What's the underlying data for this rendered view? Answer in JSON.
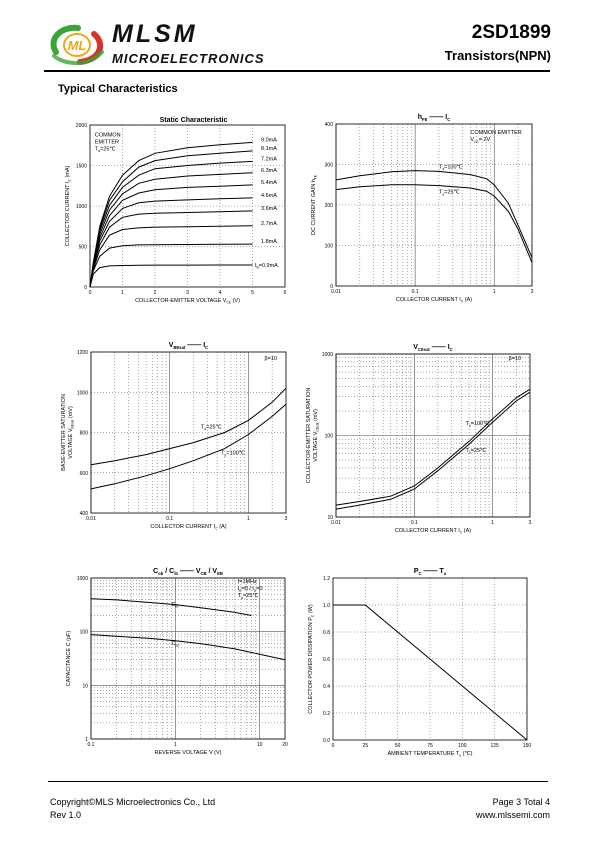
{
  "header": {
    "brand_name": "MLSM",
    "brand_sub": "MICROELECTRONICS",
    "logo_text": "ML",
    "part_number": "2SD1899",
    "part_type": "Transistors(NPN)"
  },
  "section_title": "Typical Characteristics",
  "footer": {
    "copyright": "Copyright©MLS Microelectronics Co., Ltd",
    "revision": "Rev 1.0",
    "page": "Page 3 Total 4",
    "url": "www.mlssemi.com"
  },
  "colors": {
    "ink": "#000000",
    "grid": "#555555",
    "logo_green": "#3aa535",
    "logo_red": "#d8312c",
    "logo_orange": "#f2a51a"
  },
  "chart_data": [
    {
      "id": "static",
      "type": "line",
      "title": "Static Characteristic",
      "xlabel": "COLLECTOR-EMITTER VOLTAGE",
      "xsym": "V",
      "xsub": "CE",
      "xunit": "(V)",
      "ylabel": "COLLECTOR CURRENT",
      "ysym": "I",
      "ysub": "C",
      "yunit": "(mA)",
      "xscale": "linear",
      "yscale": "linear",
      "xlim": [
        0,
        6
      ],
      "ylim": [
        0,
        2000
      ],
      "xticks": [
        0,
        1,
        2,
        3,
        4,
        5,
        6
      ],
      "xtick_labels": [
        "0",
        "1",
        "2",
        "3",
        "4",
        "5",
        "6"
      ],
      "yticks": [
        0,
        500,
        1000,
        1500,
        2000
      ],
      "ytick_labels": [
        "0",
        "500",
        "1000",
        "1500",
        "2000"
      ],
      "annotations": [
        {
          "lines": [
            {
              "text": "COMMON"
            },
            {
              "text": "EMITTER"
            },
            {
              "text": "T",
              "sub": "a",
              "after": "=25℃"
            }
          ],
          "x": 0.15,
          "y": 1860
        }
      ],
      "series": [
        {
          "name": "9.0mA",
          "x": [
            0,
            0.1,
            0.3,
            0.6,
            1,
            1.5,
            2,
            3,
            4,
            5
          ],
          "y": [
            0,
            300,
            750,
            1120,
            1380,
            1560,
            1650,
            1720,
            1755,
            1785
          ]
        },
        {
          "name": "8.1mA",
          "x": [
            0,
            0.1,
            0.3,
            0.6,
            1,
            1.5,
            2,
            3,
            4,
            5
          ],
          "y": [
            0,
            290,
            720,
            1070,
            1300,
            1480,
            1560,
            1620,
            1650,
            1680
          ]
        },
        {
          "name": "7.2mA",
          "x": [
            0,
            0.1,
            0.3,
            0.6,
            1,
            1.5,
            2,
            3,
            4,
            5
          ],
          "y": [
            0,
            280,
            690,
            1010,
            1230,
            1380,
            1460,
            1500,
            1530,
            1550
          ]
        },
        {
          "name": "6.3mA",
          "x": [
            0,
            0.1,
            0.3,
            0.6,
            1,
            1.5,
            2,
            3,
            4,
            5
          ],
          "y": [
            0,
            270,
            650,
            950,
            1150,
            1280,
            1330,
            1370,
            1390,
            1410
          ]
        },
        {
          "name": "5.4mA",
          "x": [
            0,
            0.1,
            0.3,
            0.6,
            1,
            1.5,
            2,
            3,
            4,
            5
          ],
          "y": [
            0,
            260,
            610,
            880,
            1070,
            1160,
            1200,
            1230,
            1245,
            1260
          ]
        },
        {
          "name": "4.6mA",
          "x": [
            0,
            0.1,
            0.3,
            0.6,
            1,
            1.5,
            2,
            3,
            4,
            5
          ],
          "y": [
            0,
            250,
            570,
            810,
            970,
            1040,
            1060,
            1075,
            1090,
            1100
          ]
        },
        {
          "name": "3.6mA",
          "x": [
            0,
            0.1,
            0.3,
            0.6,
            1,
            1.5,
            2,
            3,
            4,
            5
          ],
          "y": [
            0,
            235,
            520,
            740,
            860,
            900,
            910,
            920,
            930,
            940
          ]
        },
        {
          "name": "2.7mA",
          "x": [
            0,
            0.1,
            0.3,
            0.6,
            1,
            1.5,
            2,
            3,
            4,
            5
          ],
          "y": [
            0,
            220,
            460,
            640,
            710,
            730,
            740,
            745,
            750,
            755
          ]
        },
        {
          "name": "1.8mA",
          "x": [
            0,
            0.1,
            0.3,
            0.6,
            1,
            1.5,
            2,
            3,
            4,
            5
          ],
          "y": [
            0,
            200,
            380,
            480,
            510,
            520,
            522,
            525,
            528,
            530
          ]
        },
        {
          "name": "0.9mA",
          "sym": "I",
          "sub": "B",
          "prefix": "=",
          "x": [
            0,
            0.1,
            0.3,
            0.6,
            1,
            1.5,
            2,
            3,
            4,
            5
          ],
          "y": [
            0,
            160,
            240,
            260,
            265,
            268,
            270,
            270,
            272,
            272
          ]
        }
      ]
    },
    {
      "id": "hfe",
      "type": "line",
      "title_parts": [
        {
          "t": "h",
          "sub": "FE"
        },
        {
          "t": " —— "
        },
        {
          "t": "I",
          "sub": "C"
        }
      ],
      "xlabel": "COLLECTOR CURRENT",
      "xsym": "I",
      "xsub": "C",
      "xunit": "(A)",
      "ylabel": "DC CURRENT GAIN",
      "ysym": "h",
      "ysub": "FE",
      "yunit": "",
      "xscale": "log",
      "yscale": "linear",
      "xlim": [
        0.01,
        3
      ],
      "ylim": [
        0,
        400
      ],
      "xticks": [
        0.01,
        0.1,
        1,
        3
      ],
      "xtick_labels": [
        "0.01",
        "0.1",
        "1",
        "3"
      ],
      "yticks": [
        0,
        100,
        200,
        300,
        400
      ],
      "ytick_labels": [
        "0",
        "100",
        "200",
        "300",
        "400"
      ],
      "annotations": [
        {
          "lines": [
            {
              "text": "COMMON EMITTER"
            },
            {
              "text": "V",
              "sub": "CE",
              "after": "= 2V"
            }
          ],
          "x": 0.5,
          "y": 375
        }
      ],
      "series": [
        {
          "name": "=100℃",
          "sym": "T",
          "sub": "a",
          "x": [
            0.01,
            0.02,
            0.05,
            0.1,
            0.2,
            0.5,
            0.8,
            1,
            1.5,
            2,
            3
          ],
          "y": [
            262,
            272,
            282,
            285,
            283,
            275,
            265,
            250,
            205,
            150,
            70
          ]
        },
        {
          "name": "=25℃",
          "sym": "T",
          "sub": "a",
          "x": [
            0.01,
            0.02,
            0.05,
            0.1,
            0.2,
            0.5,
            0.8,
            1,
            1.5,
            2,
            3
          ],
          "y": [
            238,
            245,
            250,
            250,
            248,
            242,
            234,
            222,
            185,
            140,
            58
          ]
        }
      ]
    },
    {
      "id": "vbe",
      "type": "line",
      "title_parts": [
        {
          "t": "V",
          "sub": "BEsat"
        },
        {
          "t": " —— "
        },
        {
          "t": "I",
          "sub": "C"
        }
      ],
      "xlabel": "COLLECTOR CURRENT",
      "xsym": "I",
      "xsub": "C",
      "xunit": "(A)",
      "ylabel": "BASE-EMITTER SATURATION",
      "ylabel2": "VOLTAGE",
      "ysym": "V",
      "ysub": "BEsat",
      "yunit": "(mV)",
      "xscale": "log",
      "yscale": "linear",
      "xlim": [
        0.01,
        3
      ],
      "ylim": [
        400,
        1200
      ],
      "xticks": [
        0.01,
        0.1,
        1,
        3
      ],
      "xtick_labels": [
        "0.01",
        "0.1",
        "1",
        "3"
      ],
      "yticks": [
        400,
        600,
        800,
        1000,
        1200
      ],
      "ytick_labels": [
        "400",
        "600",
        "800",
        "1000",
        "1200"
      ],
      "annotations": [
        {
          "lines": [
            {
              "text": "β=10"
            }
          ],
          "x": 1.6,
          "y": 1160
        }
      ],
      "series": [
        {
          "name": "=25℃",
          "sym": "T",
          "sub": "a",
          "x": [
            0.01,
            0.02,
            0.05,
            0.1,
            0.2,
            0.5,
            1,
            2,
            3
          ],
          "y": [
            640,
            660,
            690,
            720,
            750,
            800,
            860,
            950,
            1020
          ]
        },
        {
          "name": "=100℃",
          "sym": "T",
          "sub": "a",
          "x": [
            0.01,
            0.02,
            0.05,
            0.1,
            0.2,
            0.5,
            1,
            2,
            3
          ],
          "y": [
            520,
            545,
            585,
            620,
            660,
            720,
            790,
            880,
            940
          ]
        }
      ]
    },
    {
      "id": "vce",
      "type": "line",
      "title_parts": [
        {
          "t": "V",
          "sub": "CEsat"
        },
        {
          "t": " —— "
        },
        {
          "t": "I",
          "sub": "C"
        }
      ],
      "xlabel": "COLLECTOR CURRENT",
      "xsym": "I",
      "xsub": "C",
      "xunit": "(A)",
      "ylabel": "COLLECTOR-EMITTER SATURATION",
      "ylabel2": "VOLTAGE",
      "ysym": "V",
      "ysub": "CEsat",
      "yunit": "(mV)",
      "xscale": "log",
      "yscale": "log",
      "xlim": [
        0.01,
        3
      ],
      "ylim": [
        10,
        1000
      ],
      "xticks": [
        0.01,
        0.1,
        1,
        3
      ],
      "xtick_labels": [
        "0.01",
        "0.1",
        "1",
        "3"
      ],
      "yticks": [
        10,
        100,
        1000
      ],
      "ytick_labels": [
        "10",
        "100",
        "1000"
      ],
      "annotations": [
        {
          "lines": [
            {
              "text": "β=10"
            }
          ],
          "x": 1.6,
          "y": 850
        }
      ],
      "series": [
        {
          "name": "=100℃",
          "sym": "T",
          "sub": "a",
          "x": [
            0.01,
            0.02,
            0.05,
            0.1,
            0.2,
            0.5,
            1,
            2,
            3
          ],
          "y": [
            14,
            15.5,
            18,
            24,
            40,
            85,
            160,
            290,
            370
          ]
        },
        {
          "name": "=25℃",
          "sym": "T",
          "sub": "a",
          "x": [
            0.01,
            0.02,
            0.05,
            0.1,
            0.2,
            0.5,
            1,
            2,
            3
          ],
          "y": [
            12.5,
            14,
            16.5,
            22,
            37,
            78,
            145,
            265,
            340
          ]
        }
      ]
    },
    {
      "id": "cap",
      "type": "line",
      "title_parts": [
        {
          "t": "C",
          "sub": "ob"
        },
        {
          "t": " / "
        },
        {
          "t": "C",
          "sub": "ib"
        },
        {
          "t": "  ——  "
        },
        {
          "t": "V",
          "sub": "CB"
        },
        {
          "t": " / "
        },
        {
          "t": "V",
          "sub": "EB"
        }
      ],
      "xlabel": "REVERSE VOLTAGE",
      "xsym": "V",
      "xsub": "",
      "xunit": "(V)",
      "ylabel": "CAPACITANCE",
      "ysym": "C",
      "ysub": "",
      "yunit": "(pF)",
      "xscale": "log",
      "yscale": "log",
      "xlim": [
        0.1,
        20
      ],
      "ylim": [
        1,
        1000
      ],
      "xticks": [
        0.1,
        1,
        10,
        20
      ],
      "xtick_labels": [
        "0.1",
        "1",
        "10",
        "20"
      ],
      "yticks": [
        1,
        10,
        100,
        1000
      ],
      "ytick_labels": [
        "1",
        "10",
        "100",
        "1000"
      ],
      "annotations": [
        {
          "lines": [
            {
              "text": "f=1MHz"
            },
            {
              "text": "I",
              "sub": "E",
              "after": "=0 / I"
            },
            {
              "text": "T",
              "sub": "a",
              "after": "=25℃"
            }
          ],
          "x": 5.5,
          "y": 800,
          "extra_sub": {
            "line": 1,
            "sub": "C",
            "after": "=0"
          }
        }
      ],
      "series": [
        {
          "name": "C",
          "sub": "ib",
          "x": [
            0.1,
            0.2,
            0.5,
            1,
            2,
            5,
            8
          ],
          "y": [
            410,
            390,
            350,
            320,
            280,
            230,
            200
          ]
        },
        {
          "name": "C",
          "sub": "ob",
          "x": [
            0.1,
            0.2,
            0.5,
            1,
            2,
            5,
            10,
            20
          ],
          "y": [
            88,
            82,
            75,
            68,
            60,
            48,
            38,
            30
          ]
        }
      ]
    },
    {
      "id": "pc",
      "type": "line",
      "title_parts": [
        {
          "t": "P",
          "sub": "C"
        },
        {
          "t": "  ——  "
        },
        {
          "t": "T",
          "sub": "a"
        }
      ],
      "xlabel": "AMBIENT TEMPERATURE",
      "xsym": "T",
      "xsub": "a",
      "xunit": "(℃)",
      "ylabel": "COLLECTOR POWER DISSIPATION",
      "ysym": "P",
      "ysub": "C",
      "yunit": "(W)",
      "xscale": "linear",
      "yscale": "linear",
      "xlim": [
        0,
        150
      ],
      "ylim": [
        0,
        1.2
      ],
      "xticks": [
        0,
        25,
        50,
        75,
        100,
        125,
        150
      ],
      "xtick_labels": [
        "0",
        "25",
        "50",
        "75",
        "100",
        "125",
        "150"
      ],
      "yticks": [
        0,
        0.2,
        0.4,
        0.6,
        0.8,
        1.0,
        1.2
      ],
      "ytick_labels": [
        "0.0",
        "0.2",
        "0.4",
        "0.6",
        "0.8",
        "1.0",
        "1.2"
      ],
      "annotations": [],
      "series": [
        {
          "name": "",
          "x": [
            0,
            25,
            150
          ],
          "y": [
            1.0,
            1.0,
            0
          ]
        }
      ]
    }
  ]
}
